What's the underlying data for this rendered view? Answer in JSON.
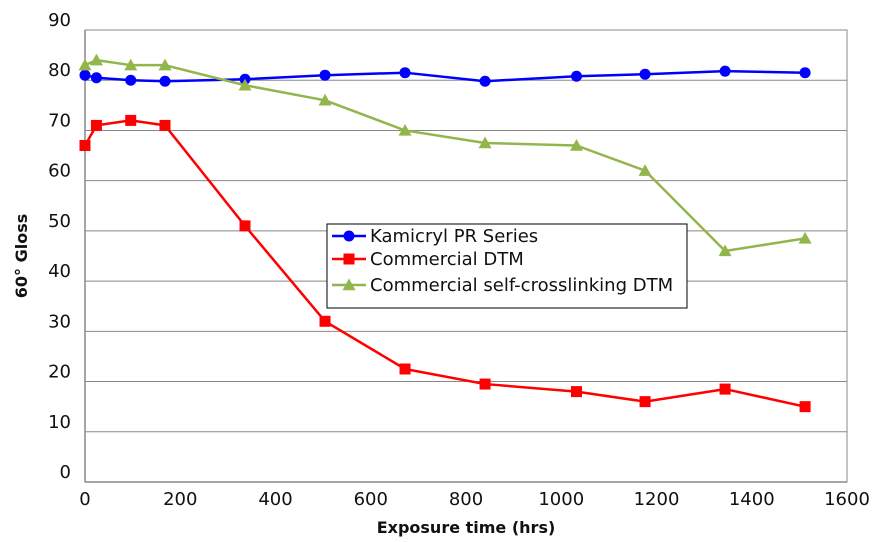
{
  "chart_data": {
    "type": "line",
    "title": "",
    "xlabel": "Exposure time (hrs)",
    "ylabel": "60° Gloss",
    "xlim": [
      0,
      1600
    ],
    "ylim": [
      0,
      90
    ],
    "x_ticks": [
      "0",
      "200",
      "400",
      "600",
      "800",
      "1000",
      "1200",
      "1400",
      "1600"
    ],
    "y_ticks": [
      "0",
      "10",
      "20",
      "30",
      "40",
      "50",
      "60",
      "70",
      "80",
      "90"
    ],
    "grid": {
      "horizontal": true,
      "vertical": false
    },
    "legend_position": "center-right",
    "series": [
      {
        "name": "Kamicryl PR Series",
        "color": "#0000ff",
        "marker": "circle",
        "points": [
          [
            0,
            81
          ],
          [
            24,
            80.5
          ],
          [
            96,
            80
          ],
          [
            168,
            79.8
          ],
          [
            336,
            80.2
          ],
          [
            504,
            81
          ],
          [
            672,
            81.5
          ],
          [
            840,
            79.8
          ],
          [
            1032,
            80.8
          ],
          [
            1176,
            81.2
          ],
          [
            1344,
            81.8
          ],
          [
            1512,
            81.5
          ]
        ]
      },
      {
        "name": "Commercial DTM",
        "color": "#ff0000",
        "marker": "square",
        "points": [
          [
            0,
            67
          ],
          [
            24,
            71
          ],
          [
            96,
            72
          ],
          [
            168,
            71
          ],
          [
            336,
            51
          ],
          [
            504,
            32
          ],
          [
            672,
            22.5
          ],
          [
            840,
            19.5
          ],
          [
            1032,
            18
          ],
          [
            1176,
            16
          ],
          [
            1344,
            18.5
          ],
          [
            1512,
            15
          ]
        ]
      },
      {
        "name": "Commercial self-crosslinking DTM",
        "color": "#92b64c",
        "marker": "triangle",
        "points": [
          [
            0,
            83
          ],
          [
            24,
            84
          ],
          [
            96,
            83
          ],
          [
            168,
            83
          ],
          [
            336,
            79
          ],
          [
            504,
            76
          ],
          [
            672,
            70
          ],
          [
            840,
            67.5
          ],
          [
            1032,
            67
          ],
          [
            1176,
            62
          ],
          [
            1344,
            46
          ],
          [
            1512,
            48.5
          ]
        ]
      }
    ]
  }
}
